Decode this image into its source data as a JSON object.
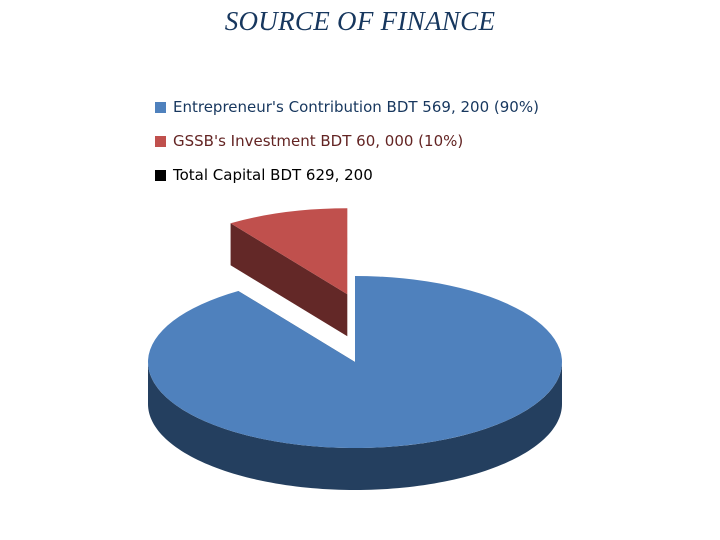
{
  "chart_data": {
    "type": "pie",
    "title": "SOURCE OF FINANCE",
    "slices": [
      {
        "label": "Entrepreneur's Contribution BDT 569,200 (90%)",
        "value": 569200,
        "percent": 90,
        "color": "#4f81bd",
        "side_color": "#243f5f"
      },
      {
        "label": "GSSB's Investment BDT 60,000 (10%)",
        "value": 60000,
        "percent": 10,
        "color": "#c0504d",
        "side_color": "#632827",
        "exploded": true
      }
    ],
    "legend": [
      {
        "label": "Entrepreneur's Contribution BDT 569, 200 (90%)",
        "color": "#4f81bd",
        "text_color": "#17375e"
      },
      {
        "label": "GSSB's Investment BDT 60, 000 (10%)",
        "color": "#c0504d",
        "text_color": "#632423"
      },
      {
        "label": "Total Capital BDT 629, 200",
        "color": "#000000",
        "text_color": "#000000"
      }
    ],
    "legend_placement": "top",
    "style": "3d"
  }
}
